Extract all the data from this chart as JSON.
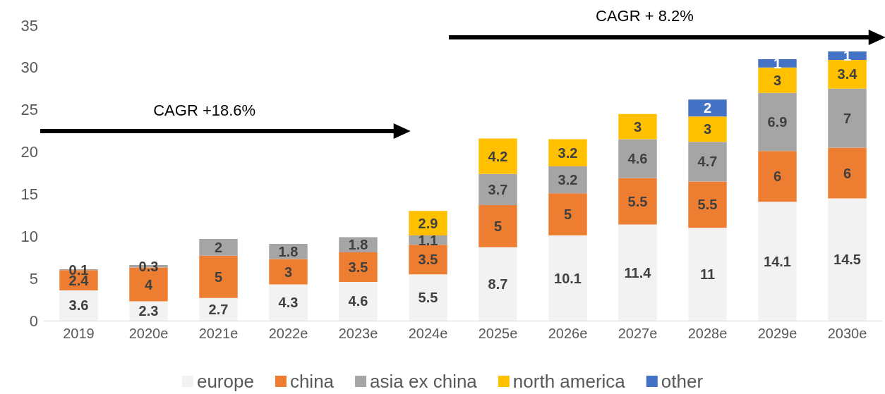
{
  "chart_data": {
    "type": "bar",
    "stacked": true,
    "categories": [
      "2019",
      "2020e",
      "2021e",
      "2022e",
      "2023e",
      "2024e",
      "2025e",
      "2026e",
      "2027e",
      "2028e",
      "2029e",
      "2030e"
    ],
    "series": [
      {
        "name": "europe",
        "color": "#f2f2f2",
        "values": [
          3.6,
          2.3,
          2.7,
          4.3,
          4.6,
          5.5,
          8.7,
          10.1,
          11.4,
          11,
          14.1,
          14.5
        ]
      },
      {
        "name": "china",
        "color": "#ed7d31",
        "values": [
          2.4,
          4,
          5,
          3,
          3.5,
          3.5,
          5,
          5,
          5.5,
          5.5,
          6,
          6
        ]
      },
      {
        "name": "asia ex china",
        "color": "#a5a5a5",
        "values": [
          0.1,
          0.3,
          2,
          1.8,
          1.8,
          1.1,
          3.7,
          3.2,
          4.6,
          4.7,
          6.9,
          7
        ]
      },
      {
        "name": "north america",
        "color": "#ffc000",
        "values": [
          null,
          null,
          null,
          null,
          null,
          2.9,
          4.2,
          3.2,
          3,
          3,
          3,
          3.4
        ]
      },
      {
        "name": "other",
        "color": "#4472c4",
        "values": [
          null,
          null,
          null,
          null,
          null,
          null,
          null,
          null,
          null,
          2,
          1,
          1
        ]
      }
    ],
    "ylim": [
      0,
      35
    ],
    "yticks": [
      0,
      5,
      10,
      15,
      20,
      25,
      30,
      35
    ],
    "grid": false,
    "legend": "bottom",
    "data_labels": true,
    "annotations": [
      "CAGR +18.6%",
      "CAGR + 8.2%"
    ]
  }
}
